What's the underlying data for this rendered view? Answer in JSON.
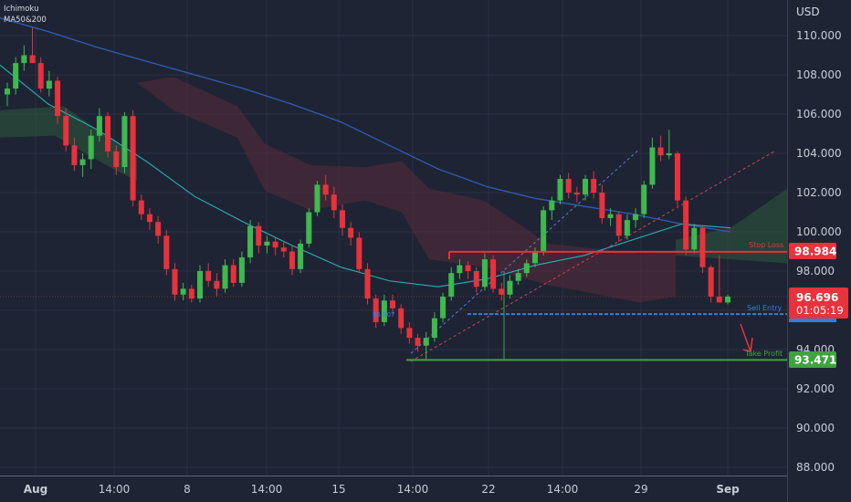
{
  "indicators": [
    "Ichimoku",
    "MA50&200"
  ],
  "colors": {
    "background": "#1e2434",
    "bull": "#3fb94e",
    "bear": "#e8323c",
    "grid": "#2a3144",
    "axis_text": "#c8ccd6",
    "ma_slow": "#2d5fb8",
    "ma_fast": "#2ab0b7",
    "cloud_bull": "#2b5a3c",
    "cloud_bear": "#5a2a38",
    "stop_loss": "#e8323c",
    "sell_entry": "#2f7fe0",
    "take_profit": "#3fa33f"
  },
  "chart_data": {
    "type": "candlestick",
    "currency": "USD",
    "ylim": [
      87.4,
      111.8
    ],
    "y_ticks": [
      "110.000",
      "108.000",
      "106.000",
      "104.000",
      "102.000",
      "100.000",
      "98.000",
      "96.000",
      "94.000",
      "92.000",
      "90.000",
      "88.000"
    ],
    "x_ticks": [
      "Aug",
      "14:00",
      "8",
      "14:00",
      "15",
      "14:00",
      "22",
      "14:00",
      "29",
      "Sep"
    ],
    "levels": {
      "stop_loss": {
        "label": "Stop Loss",
        "value": "98.984"
      },
      "sell_entry": {
        "label": "Sell Entry",
        "value": "95.807"
      },
      "take_profit": {
        "label": "Take Profit",
        "value": "93.471"
      }
    },
    "current_price": {
      "value": "96.696",
      "countdown": "01:05:19"
    },
    "candles": [
      [
        107.0,
        107.6,
        106.4,
        107.3
      ],
      [
        107.3,
        108.9,
        107.0,
        108.6
      ],
      [
        108.6,
        109.5,
        108.2,
        109.0
      ],
      [
        109.0,
        110.4,
        108.8,
        108.6
      ],
      [
        108.6,
        108.9,
        107.1,
        107.3
      ],
      [
        107.3,
        108.2,
        106.9,
        107.7
      ],
      [
        107.7,
        107.9,
        105.5,
        105.9
      ],
      [
        105.9,
        106.3,
        104.1,
        104.4
      ],
      [
        104.4,
        104.8,
        103.1,
        103.4
      ],
      [
        103.4,
        104.0,
        102.8,
        103.7
      ],
      [
        103.7,
        105.2,
        103.2,
        104.9
      ],
      [
        104.9,
        106.3,
        104.6,
        105.9
      ],
      [
        105.9,
        106.1,
        103.8,
        104.1
      ],
      [
        104.1,
        104.4,
        102.9,
        103.3
      ],
      [
        103.3,
        106.1,
        103.0,
        105.9
      ],
      [
        105.9,
        106.2,
        101.3,
        101.6
      ],
      [
        101.6,
        101.9,
        100.6,
        100.9
      ],
      [
        100.9,
        101.2,
        100.1,
        100.5
      ],
      [
        100.5,
        100.8,
        99.4,
        99.8
      ],
      [
        99.8,
        100.1,
        97.8,
        98.1
      ],
      [
        98.1,
        98.4,
        96.5,
        96.8
      ],
      [
        96.8,
        97.4,
        96.5,
        97.1
      ],
      [
        97.1,
        97.3,
        96.4,
        96.6
      ],
      [
        96.6,
        98.3,
        96.4,
        98.0
      ],
      [
        98.0,
        98.4,
        97.2,
        97.5
      ],
      [
        97.5,
        97.9,
        96.7,
        97.1
      ],
      [
        97.1,
        98.6,
        96.9,
        98.3
      ],
      [
        98.3,
        98.6,
        97.2,
        97.4
      ],
      [
        97.4,
        99.0,
        97.2,
        98.7
      ],
      [
        98.7,
        100.6,
        98.4,
        100.3
      ],
      [
        100.3,
        100.5,
        98.9,
        99.3
      ],
      [
        99.3,
        99.8,
        98.9,
        99.5
      ],
      [
        99.5,
        99.7,
        98.8,
        99.2
      ],
      [
        99.2,
        99.5,
        98.7,
        99.0
      ],
      [
        99.0,
        99.3,
        97.8,
        98.1
      ],
      [
        98.1,
        99.6,
        97.9,
        99.4
      ],
      [
        99.4,
        101.2,
        99.2,
        101.0
      ],
      [
        101.0,
        102.6,
        100.8,
        102.4
      ],
      [
        102.4,
        102.9,
        101.6,
        101.9
      ],
      [
        101.9,
        102.3,
        100.7,
        101.1
      ],
      [
        101.1,
        101.4,
        99.8,
        100.2
      ],
      [
        100.2,
        100.5,
        99.3,
        99.7
      ],
      [
        99.7,
        100.0,
        97.9,
        98.1
      ],
      [
        98.1,
        98.4,
        96.3,
        96.6
      ],
      [
        96.6,
        96.8,
        95.1,
        95.4
      ],
      [
        95.4,
        96.8,
        95.2,
        96.5
      ],
      [
        96.5,
        96.8,
        95.8,
        96.1
      ],
      [
        96.1,
        96.3,
        94.8,
        95.1
      ],
      [
        95.1,
        95.4,
        94.3,
        94.6
      ],
      [
        94.6,
        94.8,
        93.9,
        94.2
      ],
      [
        94.2,
        94.9,
        93.5,
        94.6
      ],
      [
        94.6,
        95.9,
        94.4,
        95.6
      ],
      [
        95.6,
        96.9,
        95.4,
        96.7
      ],
      [
        96.7,
        98.2,
        96.5,
        97.9
      ],
      [
        97.9,
        98.6,
        97.6,
        98.3
      ],
      [
        98.3,
        98.5,
        97.6,
        98.0
      ],
      [
        98.0,
        98.2,
        96.9,
        97.2
      ],
      [
        97.2,
        98.9,
        97.0,
        98.6
      ],
      [
        98.6,
        98.8,
        96.9,
        97.1
      ],
      [
        97.1,
        97.4,
        96.5,
        96.8
      ],
      [
        96.8,
        97.8,
        96.6,
        97.5
      ],
      [
        97.5,
        98.1,
        97.3,
        97.9
      ],
      [
        97.9,
        98.6,
        97.7,
        98.4
      ],
      [
        98.4,
        99.2,
        98.2,
        99.0
      ],
      [
        99.0,
        101.3,
        98.8,
        101.1
      ],
      [
        101.1,
        101.8,
        100.6,
        101.6
      ],
      [
        101.6,
        102.9,
        101.4,
        102.7
      ],
      [
        102.7,
        103.0,
        101.7,
        102.0
      ],
      [
        102.0,
        102.3,
        101.5,
        101.9
      ],
      [
        101.9,
        102.9,
        101.6,
        102.7
      ],
      [
        102.7,
        103.1,
        101.7,
        102.0
      ],
      [
        102.0,
        102.4,
        100.4,
        100.7
      ],
      [
        100.7,
        101.2,
        100.3,
        100.9
      ],
      [
        100.9,
        101.0,
        99.5,
        99.8
      ],
      [
        99.8,
        100.9,
        99.6,
        100.6
      ],
      [
        100.6,
        101.2,
        100.2,
        100.9
      ],
      [
        100.9,
        102.6,
        100.7,
        102.4
      ],
      [
        102.4,
        104.8,
        102.2,
        104.3
      ],
      [
        104.3,
        104.9,
        103.6,
        103.9
      ],
      [
        103.9,
        105.2,
        103.7,
        104.0
      ],
      [
        104.0,
        104.1,
        101.3,
        101.6
      ],
      [
        101.6,
        101.8,
        98.8,
        99.1
      ],
      [
        99.1,
        100.4,
        98.9,
        100.2
      ],
      [
        100.2,
        100.3,
        97.9,
        98.2
      ],
      [
        98.2,
        98.3,
        96.4,
        96.7
      ],
      [
        96.7,
        98.8,
        96.5,
        96.4
      ],
      [
        96.4,
        96.8,
        96.3,
        96.7
      ]
    ],
    "ma_slow": [
      110.9,
      110.2,
      109.4,
      108.7,
      108.0,
      107.3,
      106.5,
      105.6,
      104.4,
      103.2,
      102.3,
      101.7,
      101.3,
      100.9,
      100.4,
      100.0
    ],
    "ma_fast": [
      108.5,
      106.5,
      105.2,
      103.6,
      101.8,
      100.5,
      99.3,
      98.2,
      97.5,
      97.2,
      97.6,
      98.3,
      98.8,
      99.6,
      100.4,
      100.2
    ]
  }
}
